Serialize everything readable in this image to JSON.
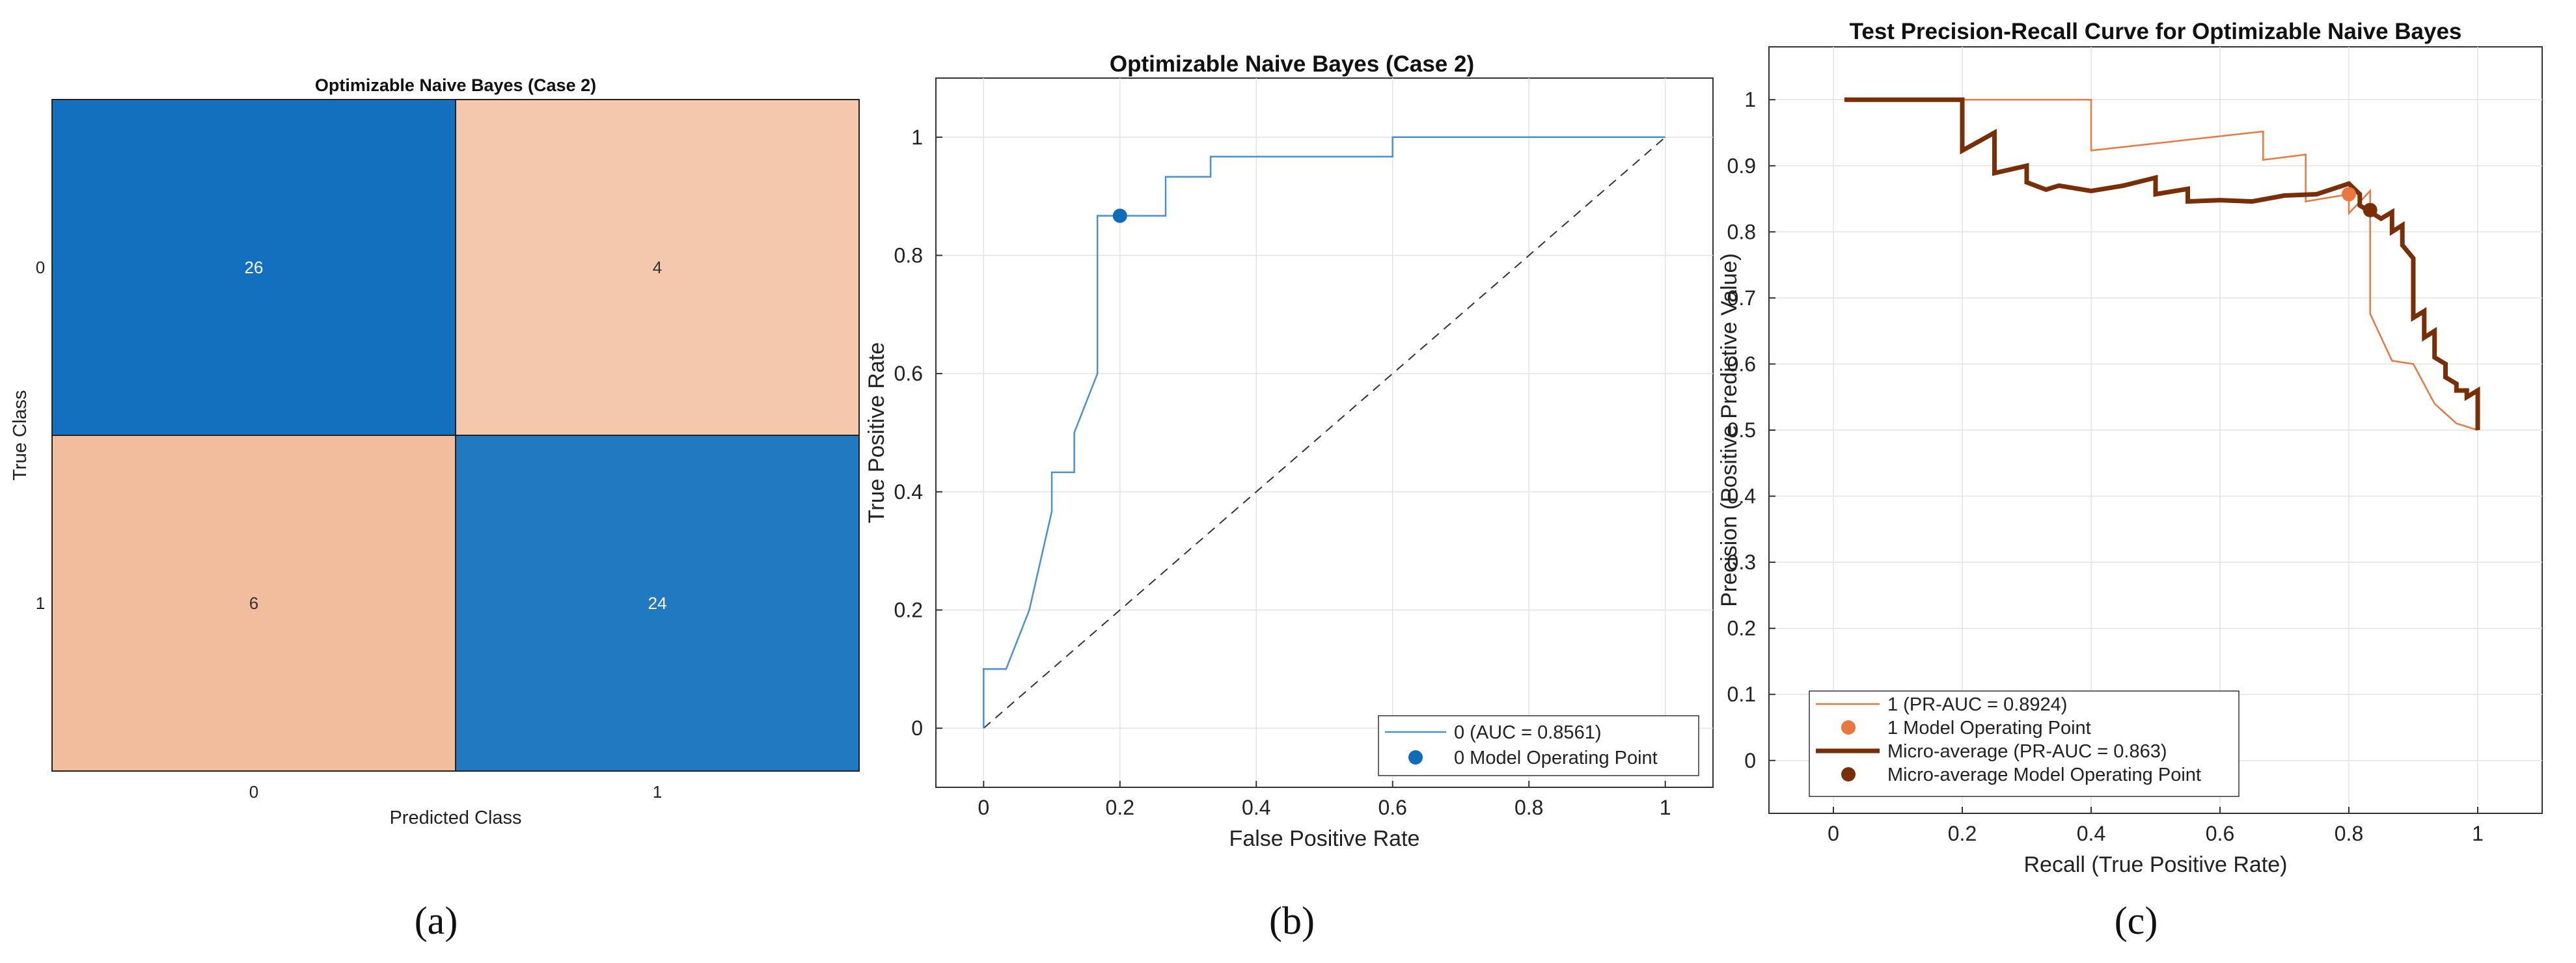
{
  "panel_labels": [
    "(a)",
    "(b)",
    "(c)"
  ],
  "colors": {
    "blue_dark": "#1270BE",
    "blue": "#2179C1",
    "peach_light": "#F4C8AC",
    "peach": "#F1BD9D",
    "roc_line": "#4A90D4",
    "roc_point": "#0E6CB8",
    "pr_class1": "#E9773E",
    "pr_micro": "#7A2E05"
  },
  "chart_data": [
    {
      "type": "heatmap",
      "title": "Optimizable Naive Bayes (Case 2)",
      "xlabel": "Predicted Class",
      "ylabel": "True Class",
      "x_categories": [
        "0",
        "1"
      ],
      "y_categories": [
        "0",
        "1"
      ],
      "values": [
        [
          26,
          4
        ],
        [
          6,
          24
        ]
      ]
    },
    {
      "type": "line",
      "title": "Optimizable Naive Bayes (Case 2)",
      "xlabel": "False Positive Rate",
      "ylabel": "True Positive Rate",
      "xlim": [
        -0.07,
        1.07
      ],
      "ylim": [
        -0.1,
        1.1
      ],
      "xticks": [
        0,
        0.2,
        0.4,
        0.6,
        0.8,
        1
      ],
      "xtick_labels": [
        "0",
        "0.2",
        "0.4",
        "0.6",
        "0.8",
        "1"
      ],
      "yticks": [
        0,
        0.2,
        0.4,
        0.6,
        0.8,
        1
      ],
      "ytick_labels": [
        "0",
        "0.2",
        "0.4",
        "0.6",
        "0.8",
        "1"
      ],
      "series": [
        {
          "name": "0 (AUC = 0.8561)",
          "x": [
            0,
            0,
            0.033,
            0.067,
            0.1,
            0.1,
            0.133,
            0.133,
            0.167,
            0.167,
            0.2,
            0.267,
            0.267,
            0.333,
            0.333,
            0.6,
            0.6,
            1
          ],
          "y": [
            0,
            0.1,
            0.1,
            0.2,
            0.367,
            0.433,
            0.433,
            0.5,
            0.6,
            0.867,
            0.867,
            0.867,
            0.933,
            0.933,
            0.967,
            0.967,
            1,
            1
          ]
        }
      ],
      "operating_point": {
        "name": "0 Model Operating Point",
        "x": 0.2,
        "y": 0.867
      },
      "reference_line": {
        "x": [
          0,
          1
        ],
        "y": [
          0,
          1
        ]
      }
    },
    {
      "type": "line",
      "title": "Test Precision-Recall Curve for Optimizable Naive Bayes",
      "xlabel": "Recall (True Positive Rate)",
      "ylabel": "Precision (Positive Predictive Value)",
      "xlim": [
        -0.1,
        1.1
      ],
      "ylim": [
        -0.08,
        1.08
      ],
      "xticks": [
        0,
        0.2,
        0.4,
        0.6,
        0.8,
        1
      ],
      "xtick_labels": [
        "0",
        "0.2",
        "0.4",
        "0.6",
        "0.8",
        "1"
      ],
      "yticks": [
        0,
        0.1,
        0.2,
        0.3,
        0.4,
        0.5,
        0.6,
        0.7,
        0.8,
        0.9,
        1
      ],
      "ytick_labels": [
        "0",
        "0.1",
        "0.2",
        "0.3",
        "0.4",
        "0.5",
        "0.6",
        "0.7",
        "0.8",
        "0.9",
        "1"
      ],
      "series": [
        {
          "name": "1 (PR-AUC = 0.8924)",
          "x": [
            0.033,
            0.4,
            0.4,
            0.667,
            0.667,
            0.733,
            0.733,
            0.8,
            0.8,
            0.833,
            0.833,
            0.867,
            0.9,
            0.933,
            0.967,
            1
          ],
          "y": [
            1,
            1,
            0.923,
            0.952,
            0.909,
            0.917,
            0.846,
            0.857,
            0.828,
            0.862,
            0.676,
            0.605,
            0.6,
            0.54,
            0.51,
            0.5
          ]
        },
        {
          "name": "Micro-average (PR-AUC = 0.863)",
          "x": [
            0.017,
            0.2,
            0.2,
            0.25,
            0.25,
            0.3,
            0.3,
            0.33,
            0.35,
            0.4,
            0.45,
            0.5,
            0.5,
            0.55,
            0.55,
            0.6,
            0.65,
            0.7,
            0.75,
            0.8,
            0.817,
            0.817,
            0.85,
            0.867,
            0.867,
            0.883,
            0.883,
            0.9,
            0.9,
            0.917,
            0.917,
            0.933,
            0.933,
            0.95,
            0.95,
            0.967,
            0.967,
            0.983,
            0.983,
            1,
            1
          ],
          "y": [
            1,
            1,
            0.923,
            0.95,
            0.889,
            0.9,
            0.875,
            0.864,
            0.87,
            0.862,
            0.87,
            0.882,
            0.857,
            0.865,
            0.846,
            0.848,
            0.846,
            0.855,
            0.857,
            0.873,
            0.857,
            0.84,
            0.82,
            0.83,
            0.8,
            0.81,
            0.78,
            0.76,
            0.67,
            0.68,
            0.64,
            0.65,
            0.61,
            0.6,
            0.58,
            0.57,
            0.56,
            0.56,
            0.55,
            0.56,
            0.5
          ]
        }
      ],
      "operating_points": [
        {
          "name": "1 Model Operating Point",
          "x": 0.8,
          "y": 0.857
        },
        {
          "name": "Micro-average Model Operating Point",
          "x": 0.833,
          "y": 0.833
        }
      ]
    }
  ]
}
